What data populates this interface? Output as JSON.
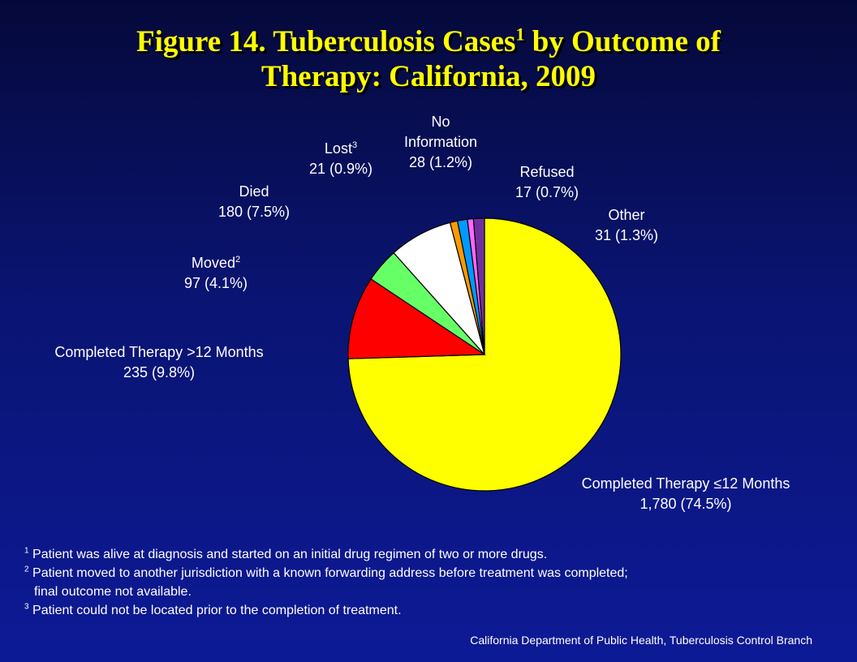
{
  "title": {
    "line1_part1": "Figure 14. Tuberculosis Cases",
    "line1_sup": "1",
    "line1_part2": " by Outcome of",
    "line2": "Therapy: California, 2009"
  },
  "chart_data": {
    "type": "pie",
    "title": "Figure 14. Tuberculosis Cases1 by Outcome of Therapy: California, 2009",
    "slices": [
      {
        "label": "Completed Therapy ≤12 Months",
        "value": 1780,
        "percent": 74.5,
        "color": "#ffff00",
        "text": "1,780 (74.5%)"
      },
      {
        "label": "Completed Therapy >12 Months",
        "value": 235,
        "percent": 9.8,
        "color": "#ff0000",
        "text": "235 (9.8%)"
      },
      {
        "label": "Moved",
        "sup": "2",
        "value": 97,
        "percent": 4.1,
        "color": "#66ff66",
        "text": "97 (4.1%)"
      },
      {
        "label": "Died",
        "value": 180,
        "percent": 7.5,
        "color": "#ffffff",
        "text": "180 (7.5%)"
      },
      {
        "label": "Lost",
        "sup": "3",
        "value": 21,
        "percent": 0.9,
        "color": "#ff9900",
        "text": "21 (0.9%)"
      },
      {
        "label": "No Information",
        "value": 28,
        "percent": 1.2,
        "color": "#0099ff",
        "text": "28 (1.2%)"
      },
      {
        "label": "Refused",
        "value": 17,
        "percent": 0.7,
        "color": "#ff66ff",
        "text": "17 (0.7%)"
      },
      {
        "label": "Other",
        "value": 31,
        "percent": 1.3,
        "color": "#7030a0",
        "text": "31 (1.3%)"
      }
    ]
  },
  "labels": {
    "completed_le12": {
      "name": "Completed Therapy ≤12 Months",
      "value": "1,780 (74.5%)"
    },
    "completed_gt12": {
      "name": "Completed Therapy >12 Months",
      "value": "235 (9.8%)"
    },
    "moved": {
      "name": "Moved",
      "sup": "2",
      "value": "97 (4.1%)"
    },
    "died": {
      "name": "Died",
      "value": "180 (7.5%)"
    },
    "lost": {
      "name": "Lost",
      "sup": "3",
      "value": "21 (0.9%)"
    },
    "no_info": {
      "name1": "No",
      "name2": "Information",
      "value": "28 (1.2%)"
    },
    "refused": {
      "name": "Refused",
      "value": "17 (0.7%)"
    },
    "other": {
      "name": "Other",
      "value": "31 (1.3%)"
    }
  },
  "footnotes": [
    {
      "num": "1",
      "text": "Patient was alive at diagnosis and started on an initial drug regimen of two or more drugs."
    },
    {
      "num": "2",
      "text": "Patient moved to another jurisdiction with a known forwarding address before treatment was completed;",
      "cont": "final outcome not available."
    },
    {
      "num": "3",
      "text": "Patient could not be located prior to the completion of treatment."
    }
  ],
  "source": "California Department  of Public Health, Tuberculosis Control Branch"
}
